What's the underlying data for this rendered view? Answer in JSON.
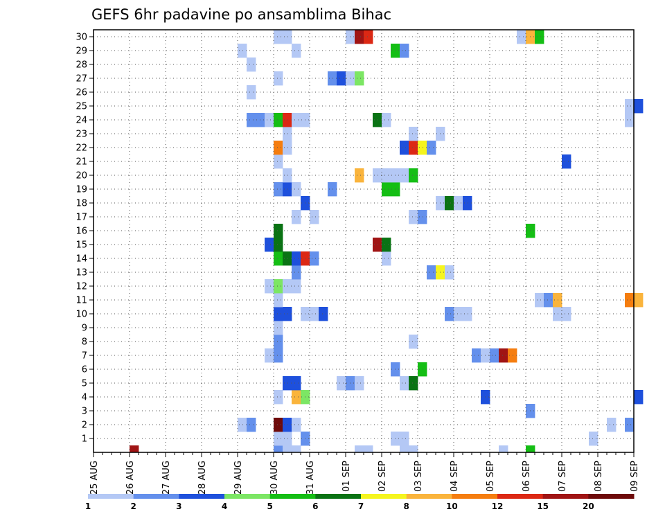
{
  "chart_data": {
    "type": "heatmap",
    "title": "GEFS 6hr padavine po ansamblima Bihac",
    "x_tick_labels": [
      "25 AUG",
      "26 AUG",
      "27 AUG",
      "28 AUG",
      "29 AUG",
      "30 AUG",
      "31 AUG",
      "01 SEP",
      "02 SEP",
      "03 SEP",
      "04 SEP",
      "05 SEP",
      "06 SEP",
      "07 SEP",
      "08 SEP",
      "09 SEP"
    ],
    "y_tick_labels": [
      "1",
      "2",
      "3",
      "4",
      "5",
      "6",
      "7",
      "8",
      "9",
      "10",
      "11",
      "12",
      "13",
      "14",
      "15",
      "16",
      "17",
      "18",
      "19",
      "20",
      "21",
      "22",
      "23",
      "24",
      "25",
      "26",
      "27",
      "28",
      "29",
      "30"
    ],
    "x_range": [
      "25 AUG 00Z",
      "09 SEP 00Z"
    ],
    "y_range": [
      0,
      30
    ],
    "steps_per_day": 4,
    "grid": true,
    "colorbar": {
      "labels": [
        "1",
        "2",
        "3",
        "4",
        "5",
        "6",
        "7",
        "8",
        "10",
        "12",
        "15",
        "20"
      ],
      "colors": [
        "#b4c8f5",
        "#6490ec",
        "#1e50dc",
        "#7ce664",
        "#14be14",
        "#0a7314",
        "#f5f51e",
        "#fab43c",
        "#f57d0f",
        "#dc2814",
        "#a01414",
        "#6e0a0a"
      ]
    },
    "cells": [
      {
        "s": 4,
        "m": 0,
        "c": 11
      },
      {
        "s": 20,
        "m": 0,
        "c": 2
      },
      {
        "s": 21,
        "m": 0,
        "c": 1
      },
      {
        "s": 22,
        "m": 0,
        "c": 1
      },
      {
        "s": 29,
        "m": 0,
        "c": 1
      },
      {
        "s": 30,
        "m": 0,
        "c": 1
      },
      {
        "s": 34,
        "m": 0,
        "c": 1
      },
      {
        "s": 35,
        "m": 0,
        "c": 1
      },
      {
        "s": 45,
        "m": 0,
        "c": 1
      },
      {
        "s": 48,
        "m": 0,
        "c": 5
      },
      {
        "s": 20,
        "m": 1,
        "c": 1
      },
      {
        "s": 21,
        "m": 1,
        "c": 1
      },
      {
        "s": 23,
        "m": 1,
        "c": 2
      },
      {
        "s": 33,
        "m": 1,
        "c": 1
      },
      {
        "s": 34,
        "m": 1,
        "c": 1
      },
      {
        "s": 55,
        "m": 1,
        "c": 1
      },
      {
        "s": 16,
        "m": 2,
        "c": 1
      },
      {
        "s": 17,
        "m": 2,
        "c": 2
      },
      {
        "s": 20,
        "m": 2,
        "c": 12
      },
      {
        "s": 21,
        "m": 2,
        "c": 3
      },
      {
        "s": 22,
        "m": 2,
        "c": 1
      },
      {
        "s": 57,
        "m": 2,
        "c": 1
      },
      {
        "s": 59,
        "m": 2,
        "c": 2
      },
      {
        "s": 48,
        "m": 3,
        "c": 2
      },
      {
        "s": 20,
        "m": 4,
        "c": 1
      },
      {
        "s": 22,
        "m": 4,
        "c": 8
      },
      {
        "s": 23,
        "m": 4,
        "c": 4
      },
      {
        "s": 43,
        "m": 4,
        "c": 3
      },
      {
        "s": 60,
        "m": 4,
        "c": 3
      },
      {
        "s": 21,
        "m": 5,
        "c": 3
      },
      {
        "s": 22,
        "m": 5,
        "c": 3
      },
      {
        "s": 27,
        "m": 5,
        "c": 1
      },
      {
        "s": 28,
        "m": 5,
        "c": 2
      },
      {
        "s": 29,
        "m": 5,
        "c": 1
      },
      {
        "s": 34,
        "m": 5,
        "c": 1
      },
      {
        "s": 35,
        "m": 5,
        "c": 6
      },
      {
        "s": 33,
        "m": 6,
        "c": 2
      },
      {
        "s": 36,
        "m": 6,
        "c": 5
      },
      {
        "s": 19,
        "m": 7,
        "c": 1
      },
      {
        "s": 20,
        "m": 7,
        "c": 2
      },
      {
        "s": 42,
        "m": 7,
        "c": 2
      },
      {
        "s": 43,
        "m": 7,
        "c": 1
      },
      {
        "s": 44,
        "m": 7,
        "c": 2
      },
      {
        "s": 45,
        "m": 7,
        "c": 11
      },
      {
        "s": 46,
        "m": 7,
        "c": 9
      },
      {
        "s": 20,
        "m": 8,
        "c": 2
      },
      {
        "s": 35,
        "m": 8,
        "c": 1
      },
      {
        "s": 20,
        "m": 9,
        "c": 1
      },
      {
        "s": 20,
        "m": 10,
        "c": 3
      },
      {
        "s": 21,
        "m": 10,
        "c": 3
      },
      {
        "s": 23,
        "m": 10,
        "c": 1
      },
      {
        "s": 24,
        "m": 10,
        "c": 1
      },
      {
        "s": 25,
        "m": 10,
        "c": 3
      },
      {
        "s": 39,
        "m": 10,
        "c": 2
      },
      {
        "s": 40,
        "m": 10,
        "c": 1
      },
      {
        "s": 41,
        "m": 10,
        "c": 1
      },
      {
        "s": 51,
        "m": 10,
        "c": 1
      },
      {
        "s": 52,
        "m": 10,
        "c": 1
      },
      {
        "s": 20,
        "m": 11,
        "c": 1
      },
      {
        "s": 49,
        "m": 11,
        "c": 1
      },
      {
        "s": 50,
        "m": 11,
        "c": 2
      },
      {
        "s": 51,
        "m": 11,
        "c": 8
      },
      {
        "s": 59,
        "m": 11,
        "c": 9
      },
      {
        "s": 60,
        "m": 11,
        "c": 8
      },
      {
        "s": 19,
        "m": 12,
        "c": 1
      },
      {
        "s": 20,
        "m": 12,
        "c": 4
      },
      {
        "s": 21,
        "m": 12,
        "c": 1
      },
      {
        "s": 22,
        "m": 12,
        "c": 1
      },
      {
        "s": 22,
        "m": 13,
        "c": 2
      },
      {
        "s": 37,
        "m": 13,
        "c": 2
      },
      {
        "s": 38,
        "m": 13,
        "c": 7
      },
      {
        "s": 39,
        "m": 13,
        "c": 1
      },
      {
        "s": 20,
        "m": 14,
        "c": 5
      },
      {
        "s": 21,
        "m": 14,
        "c": 6
      },
      {
        "s": 22,
        "m": 14,
        "c": 3
      },
      {
        "s": 23,
        "m": 14,
        "c": 10
      },
      {
        "s": 24,
        "m": 14,
        "c": 2
      },
      {
        "s": 32,
        "m": 14,
        "c": 1
      },
      {
        "s": 19,
        "m": 15,
        "c": 3
      },
      {
        "s": 20,
        "m": 15,
        "c": 6
      },
      {
        "s": 31,
        "m": 15,
        "c": 11
      },
      {
        "s": 32,
        "m": 15,
        "c": 6
      },
      {
        "s": 20,
        "m": 16,
        "c": 6
      },
      {
        "s": 48,
        "m": 16,
        "c": 5
      },
      {
        "s": 22,
        "m": 17,
        "c": 1
      },
      {
        "s": 24,
        "m": 17,
        "c": 1
      },
      {
        "s": 35,
        "m": 17,
        "c": 1
      },
      {
        "s": 36,
        "m": 17,
        "c": 2
      },
      {
        "s": 23,
        "m": 18,
        "c": 3
      },
      {
        "s": 38,
        "m": 18,
        "c": 1
      },
      {
        "s": 39,
        "m": 18,
        "c": 6
      },
      {
        "s": 40,
        "m": 18,
        "c": 1
      },
      {
        "s": 41,
        "m": 18,
        "c": 3
      },
      {
        "s": 20,
        "m": 19,
        "c": 2
      },
      {
        "s": 21,
        "m": 19,
        "c": 3
      },
      {
        "s": 22,
        "m": 19,
        "c": 1
      },
      {
        "s": 26,
        "m": 19,
        "c": 2
      },
      {
        "s": 32,
        "m": 19,
        "c": 5
      },
      {
        "s": 33,
        "m": 19,
        "c": 5
      },
      {
        "s": 21,
        "m": 20,
        "c": 1
      },
      {
        "s": 29,
        "m": 20,
        "c": 8
      },
      {
        "s": 31,
        "m": 20,
        "c": 1
      },
      {
        "s": 32,
        "m": 20,
        "c": 1
      },
      {
        "s": 33,
        "m": 20,
        "c": 1
      },
      {
        "s": 34,
        "m": 20,
        "c": 1
      },
      {
        "s": 35,
        "m": 20,
        "c": 5
      },
      {
        "s": 20,
        "m": 21,
        "c": 1
      },
      {
        "s": 52,
        "m": 21,
        "c": 3
      },
      {
        "s": 20,
        "m": 22,
        "c": 9
      },
      {
        "s": 21,
        "m": 22,
        "c": 1
      },
      {
        "s": 34,
        "m": 22,
        "c": 3
      },
      {
        "s": 35,
        "m": 22,
        "c": 10
      },
      {
        "s": 36,
        "m": 22,
        "c": 7
      },
      {
        "s": 37,
        "m": 22,
        "c": 2
      },
      {
        "s": 21,
        "m": 23,
        "c": 1
      },
      {
        "s": 35,
        "m": 23,
        "c": 1
      },
      {
        "s": 38,
        "m": 23,
        "c": 1
      },
      {
        "s": 17,
        "m": 24,
        "c": 2
      },
      {
        "s": 18,
        "m": 24,
        "c": 2
      },
      {
        "s": 19,
        "m": 24,
        "c": 1
      },
      {
        "s": 20,
        "m": 24,
        "c": 5
      },
      {
        "s": 21,
        "m": 24,
        "c": 10
      },
      {
        "s": 22,
        "m": 24,
        "c": 1
      },
      {
        "s": 23,
        "m": 24,
        "c": 1
      },
      {
        "s": 31,
        "m": 24,
        "c": 6
      },
      {
        "s": 32,
        "m": 24,
        "c": 1
      },
      {
        "s": 59,
        "m": 24,
        "c": 1
      },
      {
        "s": 59,
        "m": 25,
        "c": 1
      },
      {
        "s": 60,
        "m": 25,
        "c": 3
      },
      {
        "s": 17,
        "m": 26,
        "c": 1
      },
      {
        "s": 20,
        "m": 27,
        "c": 1
      },
      {
        "s": 26,
        "m": 27,
        "c": 2
      },
      {
        "s": 27,
        "m": 27,
        "c": 3
      },
      {
        "s": 28,
        "m": 27,
        "c": 1
      },
      {
        "s": 29,
        "m": 27,
        "c": 4
      },
      {
        "s": 17,
        "m": 28,
        "c": 1
      },
      {
        "s": 16,
        "m": 29,
        "c": 1
      },
      {
        "s": 22,
        "m": 29,
        "c": 1
      },
      {
        "s": 33,
        "m": 29,
        "c": 5
      },
      {
        "s": 34,
        "m": 29,
        "c": 2
      },
      {
        "s": 20,
        "m": 30,
        "c": 1
      },
      {
        "s": 21,
        "m": 30,
        "c": 1
      },
      {
        "s": 28,
        "m": 30,
        "c": 1
      },
      {
        "s": 29,
        "m": 30,
        "c": 11
      },
      {
        "s": 30,
        "m": 30,
        "c": 10
      },
      {
        "s": 47,
        "m": 30,
        "c": 1
      },
      {
        "s": 48,
        "m": 30,
        "c": 8
      },
      {
        "s": 49,
        "m": 30,
        "c": 5
      }
    ]
  }
}
